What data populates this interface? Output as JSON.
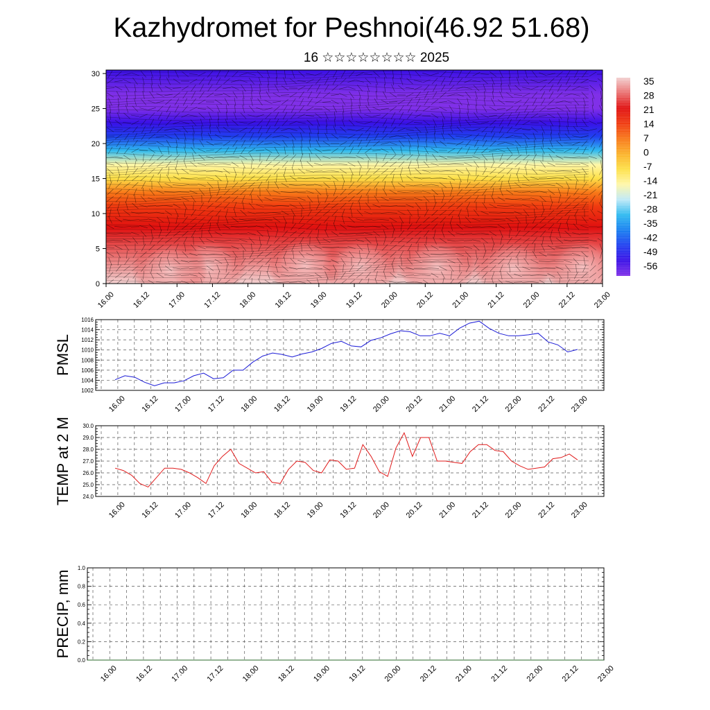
{
  "header": {
    "title": "Kazhydromet for Peshnoi(46.92 51.68)",
    "subtitle": "16 ☆☆☆☆☆☆☆☆ 2025"
  },
  "chart_data": [
    {
      "type": "heatmap",
      "panel": "vertical-temperature-wind-cross-section",
      "x_tick_labels": [
        "16.00",
        "16.12",
        "17.00",
        "17.12",
        "18.00",
        "18.12",
        "19.00",
        "19.12",
        "20.00",
        "20.12",
        "21.00",
        "21.12",
        "22.00",
        "22.12",
        "23.00"
      ],
      "y_tick_labels": [
        "0",
        "5",
        "10",
        "15",
        "20",
        "25",
        "30"
      ],
      "ylim": [
        0,
        30.5
      ],
      "colorbar_labels": [
        "35",
        "28",
        "21",
        "14",
        "7",
        "0",
        "-7",
        "-14",
        "-21",
        "-28",
        "-35",
        "-42",
        "-49",
        "-56"
      ],
      "colorbar_colors": [
        "#f2d0d0",
        "#ea7070",
        "#e01010",
        "#f03a10",
        "#f87818",
        "#fbb22a",
        "#fde048",
        "#fff7a8",
        "#bfe9f7",
        "#2fbaf0",
        "#187ff0",
        "#2040f0",
        "#3a10e6",
        "#8030e8"
      ],
      "profile": [
        {
          "z": 0,
          "t": 32
        },
        {
          "z": 4,
          "t": 30
        },
        {
          "z": 8,
          "t": 24
        },
        {
          "z": 11,
          "t": 14
        },
        {
          "z": 13,
          "t": 6
        },
        {
          "z": 15,
          "t": -6
        },
        {
          "z": 17,
          "t": -16
        },
        {
          "z": 19,
          "t": -28
        },
        {
          "z": 21,
          "t": -40
        },
        {
          "z": 23,
          "t": -50
        },
        {
          "z": 25,
          "t": -57
        },
        {
          "z": 27,
          "t": -54
        },
        {
          "z": 30.5,
          "t": -49
        }
      ]
    },
    {
      "type": "line",
      "panel": "pmsl",
      "ylabel": "PMSL",
      "x_tick_labels": [
        "16.00",
        "16.12",
        "17.00",
        "17.12",
        "18.00",
        "18.12",
        "19.00",
        "19.12",
        "20.00",
        "20.12",
        "21.00",
        "21.12",
        "22.00",
        "22.12",
        "23.00"
      ],
      "y_tick_labels": [
        "1002",
        "1004",
        "1006",
        "1008",
        "1010",
        "1012",
        "1014",
        "1016"
      ],
      "ylim": [
        1002,
        1016
      ],
      "color": "#1a1ad6",
      "values": [
        1004.1,
        1004.9,
        1004.6,
        1003.6,
        1002.9,
        1003.5,
        1003.5,
        1003.9,
        1004.9,
        1005.4,
        1004.3,
        1004.5,
        1006.0,
        1006.0,
        1007.6,
        1008.8,
        1009.4,
        1009.1,
        1008.6,
        1009.2,
        1009.6,
        1010.3,
        1011.3,
        1011.7,
        1010.8,
        1010.6,
        1011.9,
        1012.4,
        1013.2,
        1013.8,
        1013.6,
        1012.8,
        1012.8,
        1013.3,
        1012.8,
        1014.3,
        1015.3,
        1015.7,
        1014.3,
        1013.3,
        1012.8,
        1012.8,
        1013.0,
        1013.3,
        1011.6,
        1011.0,
        1009.6,
        1010.1
      ]
    },
    {
      "type": "line",
      "panel": "temp-2m",
      "ylabel": "TEMP at 2 M",
      "x_tick_labels": [
        "16.00",
        "16.12",
        "17.00",
        "17.12",
        "18.00",
        "18.12",
        "19.00",
        "19.12",
        "20.00",
        "20.12",
        "21.00",
        "21.12",
        "22.00",
        "22.12",
        "23.00"
      ],
      "y_tick_labels": [
        "24.0",
        "25.0",
        "26.0",
        "27.0",
        "28.0",
        "29.0",
        "30.0"
      ],
      "ylim": [
        24,
        30
      ],
      "color": "#e01a1a",
      "values": [
        26.4,
        26.2,
        25.8,
        25.1,
        24.8,
        25.6,
        26.4,
        26.4,
        26.3,
        26.0,
        25.6,
        25.1,
        26.6,
        27.4,
        28.0,
        26.8,
        26.4,
        26.0,
        26.1,
        25.2,
        25.1,
        26.3,
        27.0,
        26.9,
        26.2,
        26.0,
        27.1,
        27.0,
        26.3,
        26.4,
        28.4,
        27.4,
        26.1,
        25.7,
        28.1,
        29.4,
        27.4,
        29.0,
        29.0,
        27.0,
        27.0,
        26.9,
        26.8,
        27.8,
        28.4,
        28.4,
        27.9,
        27.8,
        27.0,
        26.6,
        26.3,
        26.4,
        26.5,
        27.2,
        27.3,
        27.6,
        27.1
      ]
    },
    {
      "type": "line",
      "panel": "precip",
      "ylabel": "PRECIP, mm",
      "x_tick_labels": [
        "16.00",
        "16.12",
        "17.00",
        "17.12",
        "18.00",
        "18.12",
        "19.00",
        "19.12",
        "20.00",
        "20.12",
        "21.00",
        "21.12",
        "22.00",
        "22.12",
        "23.00"
      ],
      "y_tick_labels": [
        "0.0",
        "0.2",
        "0.4",
        "0.6",
        "0.8",
        "1.0"
      ],
      "ylim": [
        0,
        1
      ],
      "color": "#2a6a2a",
      "values": [
        0,
        0,
        0,
        0,
        0,
        0,
        0,
        0,
        0,
        0,
        0,
        0,
        0,
        0,
        0,
        0,
        0,
        0,
        0,
        0,
        0,
        0,
        0,
        0,
        0,
        0,
        0,
        0,
        0,
        0,
        0,
        0,
        0,
        0,
        0,
        0,
        0,
        0,
        0,
        0,
        0,
        0,
        0,
        0,
        0,
        0,
        0,
        0,
        0,
        0,
        0,
        0,
        0,
        0,
        0,
        0,
        0
      ]
    }
  ]
}
